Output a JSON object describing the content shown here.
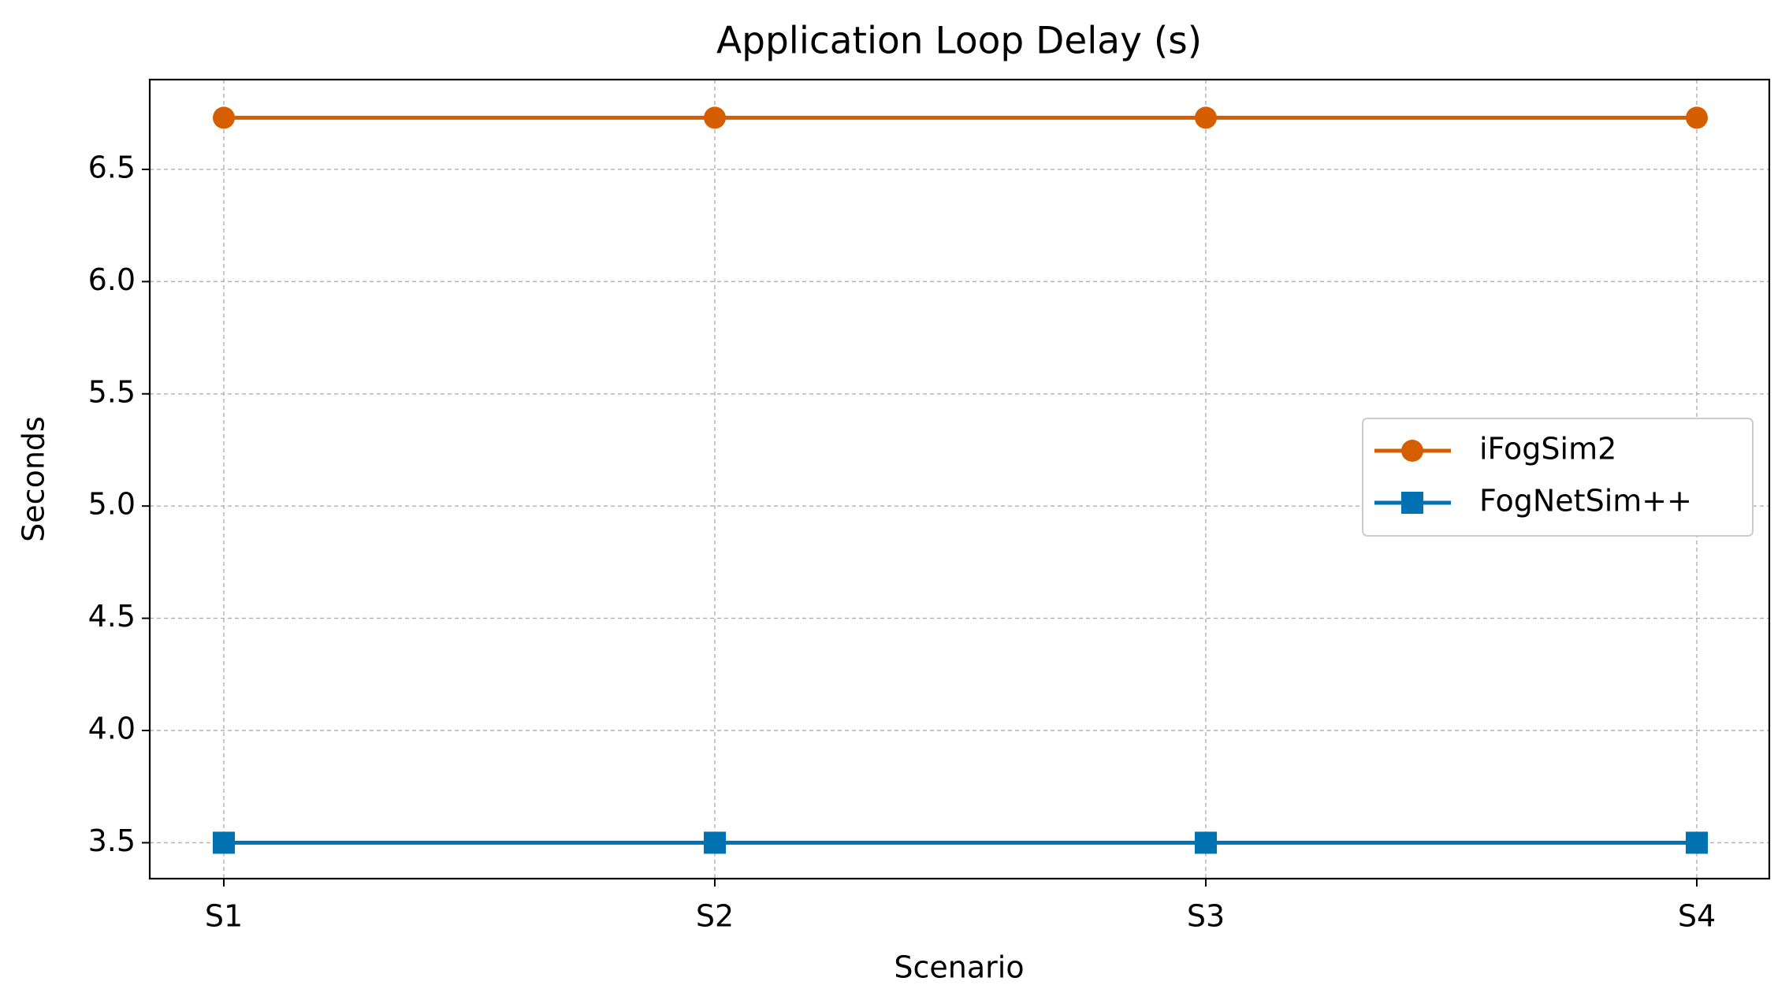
{
  "chart_data": {
    "type": "line",
    "title": "Application Loop Delay (s)",
    "x_label": "Scenario",
    "y_label": "Seconds",
    "categories": [
      "S1",
      "S2",
      "S3",
      "S4"
    ],
    "series": [
      {
        "name": "iFogSim2",
        "color": "#d55e00",
        "marker": "circle",
        "values": [
          6.73,
          6.73,
          6.73,
          6.73
        ]
      },
      {
        "name": "FogNetSim++",
        "color": "#0072b2",
        "marker": "square",
        "values": [
          3.5,
          3.5,
          3.5,
          3.5
        ]
      }
    ],
    "ylim": [
      3.34,
      6.9
    ],
    "yticks": [
      3.5,
      {
        "value": 4,
        "label": "4.0"
      },
      4.5,
      {
        "value": 5,
        "label": "5.0"
      },
      5.5,
      {
        "value": 6,
        "label": "6.0"
      },
      6.5
    ],
    "grid": true,
    "legend": "center right"
  }
}
